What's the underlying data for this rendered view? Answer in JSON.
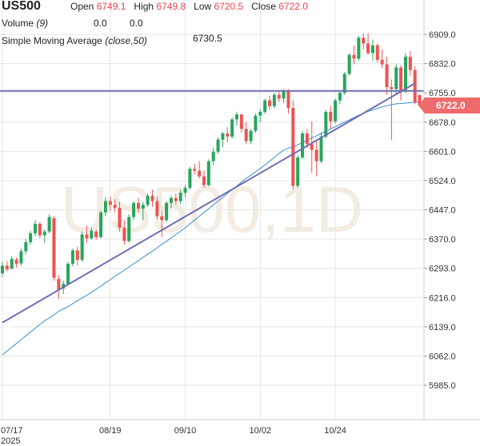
{
  "header": {
    "symbol": "US500",
    "open_label": "Open",
    "open_value": "6749.1",
    "high_label": "High",
    "high_value": "6749.8",
    "low_label": "Low",
    "low_value": "6720.5",
    "close_label": "Close",
    "close_value": "6722.0",
    "volume_label": "Volume",
    "volume_param": "(9)",
    "volume_value_1": "0.0",
    "volume_value_2": "0.0",
    "sma_label": "Simple Moving Average",
    "sma_param": "(close,50)",
    "sma_value": "6730.5"
  },
  "watermark": "US500,1D",
  "last_price": "6722.0",
  "colors": {
    "up": "#26a65b",
    "down": "#ef5350",
    "sma": "#3a8fd8",
    "trendline": "#6f6fb5",
    "grid": "#e6e6e6",
    "badge": "#ef6b6b"
  },
  "chart_data": {
    "type": "candlestick",
    "ylim": [
      5920,
      6950
    ],
    "y_ticks": [
      "6909.0",
      "6832.0",
      "6755.0",
      "6678.0",
      "6601.0",
      "6524.0",
      "6447.0",
      "6370.0",
      "6293.0",
      "6216.0",
      "6139.0",
      "6062.0",
      "5985.0"
    ],
    "x_ticks": [
      {
        "label": "07/17",
        "sub": "2025",
        "index": 0
      },
      {
        "label": "08/19",
        "sub": "",
        "index": 23
      },
      {
        "label": "09/10",
        "sub": "",
        "index": 39
      },
      {
        "label": "10/02",
        "sub": "",
        "index": 55
      },
      {
        "label": "10/24",
        "sub": "",
        "index": 71
      }
    ],
    "candles": [
      [
        6280,
        6310,
        6270,
        6300
      ],
      [
        6300,
        6312,
        6285,
        6290
      ],
      [
        6292,
        6325,
        6290,
        6318
      ],
      [
        6316,
        6322,
        6295,
        6305
      ],
      [
        6306,
        6345,
        6300,
        6338
      ],
      [
        6338,
        6370,
        6330,
        6362
      ],
      [
        6362,
        6392,
        6355,
        6385
      ],
      [
        6385,
        6420,
        6378,
        6410
      ],
      [
        6410,
        6415,
        6372,
        6380
      ],
      [
        6380,
        6395,
        6360,
        6390
      ],
      [
        6390,
        6435,
        6385,
        6428
      ],
      [
        6425,
        6430,
        6260,
        6268
      ],
      [
        6265,
        6275,
        6212,
        6238
      ],
      [
        6240,
        6260,
        6225,
        6252
      ],
      [
        6252,
        6310,
        6248,
        6305
      ],
      [
        6305,
        6345,
        6298,
        6340
      ],
      [
        6340,
        6350,
        6300,
        6315
      ],
      [
        6315,
        6390,
        6310,
        6382
      ],
      [
        6382,
        6405,
        6360,
        6372
      ],
      [
        6372,
        6400,
        6368,
        6392
      ],
      [
        6390,
        6395,
        6368,
        6375
      ],
      [
        6375,
        6445,
        6372,
        6440
      ],
      [
        6440,
        6480,
        6430,
        6470
      ],
      [
        6470,
        6482,
        6445,
        6460
      ],
      [
        6460,
        6475,
        6440,
        6452
      ],
      [
        6452,
        6468,
        6390,
        6400
      ],
      [
        6400,
        6420,
        6355,
        6365
      ],
      [
        6365,
        6435,
        6360,
        6428
      ],
      [
        6428,
        6470,
        6420,
        6465
      ],
      [
        6465,
        6478,
        6440,
        6450
      ],
      [
        6450,
        6468,
        6420,
        6460
      ],
      [
        6460,
        6490,
        6455,
        6484
      ],
      [
        6484,
        6500,
        6455,
        6470
      ],
      [
        6470,
        6482,
        6420,
        6430
      ],
      [
        6430,
        6445,
        6375,
        6420
      ],
      [
        6420,
        6470,
        6415,
        6465
      ],
      [
        6465,
        6485,
        6450,
        6478
      ],
      [
        6478,
        6490,
        6460,
        6470
      ],
      [
        6470,
        6500,
        6462,
        6492
      ],
      [
        6492,
        6512,
        6480,
        6505
      ],
      [
        6505,
        6560,
        6500,
        6555
      ],
      [
        6555,
        6568,
        6540,
        6550
      ],
      [
        6550,
        6575,
        6530,
        6535
      ],
      [
        6535,
        6550,
        6505,
        6512
      ],
      [
        6512,
        6580,
        6508,
        6575
      ],
      [
        6575,
        6610,
        6565,
        6600
      ],
      [
        6600,
        6638,
        6595,
        6632
      ],
      [
        6632,
        6652,
        6612,
        6648
      ],
      [
        6648,
        6665,
        6625,
        6640
      ],
      [
        6640,
        6690,
        6635,
        6685
      ],
      [
        6685,
        6705,
        6668,
        6698
      ],
      [
        6698,
        6700,
        6650,
        6660
      ],
      [
        6660,
        6678,
        6620,
        6628
      ],
      [
        6628,
        6660,
        6620,
        6655
      ],
      [
        6655,
        6700,
        6650,
        6695
      ],
      [
        6695,
        6712,
        6678,
        6705
      ],
      [
        6705,
        6740,
        6700,
        6735
      ],
      [
        6735,
        6748,
        6710,
        6720
      ],
      [
        6720,
        6755,
        6715,
        6750
      ],
      [
        6750,
        6760,
        6730,
        6740
      ],
      [
        6740,
        6765,
        6728,
        6760
      ],
      [
        6760,
        6765,
        6700,
        6715
      ],
      [
        6715,
        6735,
        6500,
        6510
      ],
      [
        6510,
        6590,
        6505,
        6585
      ],
      [
        6585,
        6655,
        6580,
        6648
      ],
      [
        6648,
        6660,
        6610,
        6620
      ],
      [
        6620,
        6680,
        6545,
        6605
      ],
      [
        6605,
        6628,
        6535,
        6575
      ],
      [
        6575,
        6650,
        6570,
        6640
      ],
      [
        6640,
        6710,
        6635,
        6705
      ],
      [
        6705,
        6720,
        6660,
        6680
      ],
      [
        6680,
        6740,
        6675,
        6735
      ],
      [
        6735,
        6760,
        6725,
        6755
      ],
      [
        6755,
        6810,
        6750,
        6805
      ],
      [
        6805,
        6860,
        6800,
        6855
      ],
      [
        6855,
        6880,
        6830,
        6845
      ],
      [
        6845,
        6905,
        6840,
        6900
      ],
      [
        6900,
        6912,
        6870,
        6885
      ],
      [
        6885,
        6912,
        6855,
        6860
      ],
      [
        6860,
        6895,
        6840,
        6880
      ],
      [
        6880,
        6885,
        6835,
        6842
      ],
      [
        6842,
        6870,
        6820,
        6830
      ],
      [
        6830,
        6850,
        6750,
        6770
      ],
      [
        6770,
        6790,
        6630,
        6765
      ],
      [
        6765,
        6830,
        6750,
        6822
      ],
      [
        6822,
        6828,
        6735,
        6760
      ],
      [
        6760,
        6860,
        6755,
        6850
      ],
      [
        6850,
        6865,
        6800,
        6815
      ],
      [
        6815,
        6825,
        6725,
        6730
      ],
      [
        6749,
        6750,
        6720,
        6722
      ]
    ],
    "sma_values": [
      6065,
      6075,
      6085,
      6095,
      6105,
      6115,
      6125,
      6135,
      6145,
      6155,
      6162,
      6170,
      6180,
      6186,
      6192,
      6200,
      6208,
      6215,
      6222,
      6230,
      6238,
      6246,
      6255,
      6263,
      6272,
      6280,
      6288,
      6296,
      6305,
      6313,
      6322,
      6330,
      6338,
      6347,
      6356,
      6364,
      6373,
      6382,
      6391,
      6400,
      6410,
      6420,
      6430,
      6440,
      6450,
      6460,
      6470,
      6480,
      6490,
      6500,
      6510,
      6520,
      6530,
      6538,
      6547,
      6556,
      6565,
      6575,
      6585,
      6595,
      6604,
      6610,
      6612,
      6618,
      6624,
      6630,
      6636,
      6642,
      6648,
      6654,
      6660,
      6666,
      6672,
      6678,
      6684,
      6690,
      6696,
      6701,
      6706,
      6710,
      6714,
      6718,
      6721,
      6724,
      6726,
      6727,
      6728,
      6729,
      6730,
      6730.5
    ],
    "trendline_diagonal": [
      [
        0,
        6150
      ],
      [
        88,
        6780
      ]
    ],
    "trendline_horizontal": 6760
  }
}
